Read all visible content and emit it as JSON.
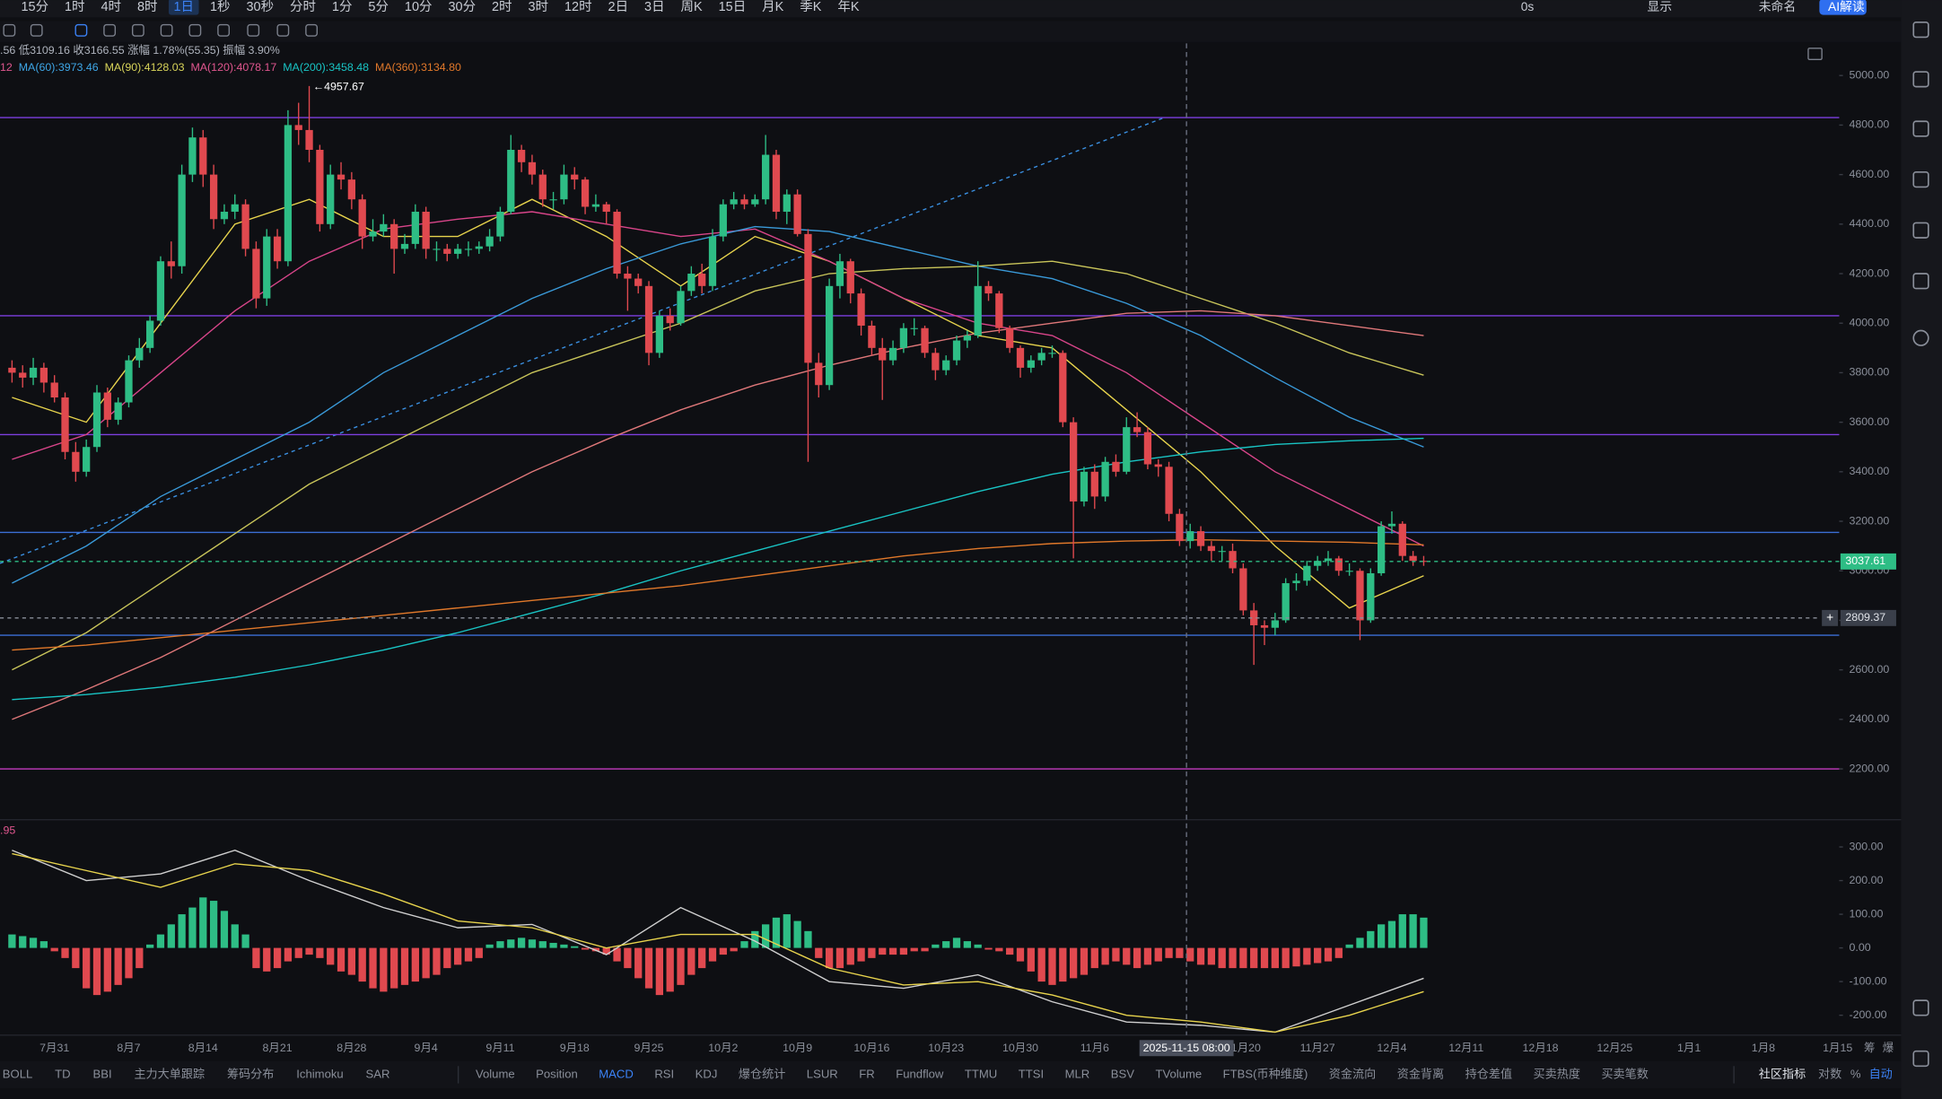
{
  "toolbar": {
    "intervals": [
      "15分",
      "1时",
      "4时",
      "8时",
      "1日",
      "1秒",
      "30秒",
      "分时",
      "1分",
      "5分",
      "10分",
      "30分",
      "2时",
      "3时",
      "12时",
      "2日",
      "3日",
      "周K",
      "15日",
      "月K",
      "季K",
      "年K"
    ],
    "selected": "1日",
    "right": [
      "0s",
      "显示",
      "未命名",
      "AI解读"
    ]
  },
  "info_line": ".56 低3109.16 收3166.55 涨幅 1.78%(55.35) 振幅 3.90%",
  "ma_legend": [
    {
      "label": "12",
      "color": "#e0568f"
    },
    {
      "label": "MA(60):3973.46",
      "color": "#3ea6e6"
    },
    {
      "label": "MA(90):4128.03",
      "color": "#d8d45a"
    },
    {
      "label": "MA(120):4078.17",
      "color": "#e0568f"
    },
    {
      "label": "MA(200):3458.48",
      "color": "#19c4c4"
    },
    {
      "label": "MA(360):3134.80",
      "color": "#e0782a"
    }
  ],
  "chart_data": {
    "type": "candlestick",
    "up_color": "#2ebd85",
    "down_color": "#e0494f",
    "ylim": [
      1995,
      5130
    ],
    "yticks": [
      {
        "value": 5000,
        "label": "5000.00"
      },
      {
        "value": 4800,
        "label": "4800.00"
      },
      {
        "value": 4600,
        "label": "4600.00"
      },
      {
        "value": 4400,
        "label": "4400.00"
      },
      {
        "value": 4200,
        "label": "4200.00"
      },
      {
        "value": 4000,
        "label": "4000.00"
      },
      {
        "value": 3800,
        "label": "3800.00"
      },
      {
        "value": 3600,
        "label": "3600.00"
      },
      {
        "value": 3400,
        "label": "3400.00"
      },
      {
        "value": 3200,
        "label": "3200.00"
      },
      {
        "value": 3000,
        "label": "3000.00"
      },
      {
        "value": 2800,
        "label": "2800.00"
      },
      {
        "value": 2600,
        "label": "2600.00"
      },
      {
        "value": 2400,
        "label": "2400.00"
      },
      {
        "value": 2200,
        "label": "2200.00"
      }
    ],
    "xticks": [
      "7月31",
      "8月7",
      "8月14",
      "8月21",
      "8月28",
      "9月4",
      "9月11",
      "9月18",
      "9月25",
      "10月2",
      "10月9",
      "10月16",
      "10月23",
      "10月30",
      "11月6",
      null,
      "11月20",
      "11月27",
      "12月4",
      "12月11",
      "12月18",
      "12月25",
      "1月1",
      "1月8",
      "1月15"
    ],
    "crosshair_label": "2025-11-15 08:00",
    "last_price": 3037.61,
    "marker_price": 2809.37,
    "candles": [
      [
        3820,
        3850,
        3760,
        3800
      ],
      [
        3800,
        3830,
        3740,
        3780
      ],
      [
        3780,
        3860,
        3750,
        3820
      ],
      [
        3820,
        3840,
        3720,
        3760
      ],
      [
        3760,
        3790,
        3680,
        3700
      ],
      [
        3700,
        3720,
        3450,
        3480
      ],
      [
        3480,
        3520,
        3360,
        3400
      ],
      [
        3400,
        3530,
        3380,
        3500
      ],
      [
        3500,
        3750,
        3480,
        3720
      ],
      [
        3720,
        3740,
        3580,
        3610
      ],
      [
        3610,
        3700,
        3590,
        3680
      ],
      [
        3680,
        3870,
        3660,
        3850
      ],
      [
        3850,
        3940,
        3820,
        3900
      ],
      [
        3900,
        4030,
        3880,
        4010
      ],
      [
        4010,
        4270,
        3990,
        4250
      ],
      [
        4250,
        4330,
        4180,
        4230
      ],
      [
        4230,
        4640,
        4200,
        4600
      ],
      [
        4600,
        4790,
        4570,
        4750
      ],
      [
        4750,
        4780,
        4550,
        4600
      ],
      [
        4600,
        4640,
        4380,
        4420
      ],
      [
        4420,
        4480,
        4400,
        4450
      ],
      [
        4450,
        4520,
        4420,
        4480
      ],
      [
        4480,
        4500,
        4270,
        4300
      ],
      [
        4300,
        4330,
        4060,
        4100
      ],
      [
        4100,
        4380,
        4070,
        4350
      ],
      [
        4350,
        4380,
        4220,
        4250
      ],
      [
        4250,
        4860,
        4230,
        4800
      ],
      [
        4800,
        4890,
        4720,
        4780
      ],
      [
        4780,
        4957.67,
        4650,
        4700
      ],
      [
        4700,
        4720,
        4370,
        4400
      ],
      [
        4400,
        4640,
        4380,
        4600
      ],
      [
        4600,
        4650,
        4540,
        4580
      ],
      [
        4580,
        4610,
        4460,
        4500
      ],
      [
        4500,
        4520,
        4300,
        4350
      ],
      [
        4350,
        4420,
        4330,
        4370
      ],
      [
        4370,
        4440,
        4350,
        4400
      ],
      [
        4400,
        4420,
        4200,
        4300
      ],
      [
        4300,
        4360,
        4280,
        4320
      ],
      [
        4320,
        4480,
        4300,
        4450
      ],
      [
        4450,
        4470,
        4260,
        4300
      ],
      [
        4300,
        4330,
        4250,
        4300
      ],
      [
        4300,
        4320,
        4250,
        4280
      ],
      [
        4280,
        4320,
        4260,
        4300
      ],
      [
        4300,
        4330,
        4270,
        4300
      ],
      [
        4300,
        4330,
        4280,
        4310
      ],
      [
        4310,
        4380,
        4290,
        4350
      ],
      [
        4350,
        4470,
        4330,
        4450
      ],
      [
        4450,
        4760,
        4440,
        4700
      ],
      [
        4700,
        4720,
        4610,
        4650
      ],
      [
        4650,
        4680,
        4560,
        4600
      ],
      [
        4600,
        4620,
        4470,
        4500
      ],
      [
        4500,
        4530,
        4460,
        4500
      ],
      [
        4500,
        4640,
        4480,
        4600
      ],
      [
        4600,
        4630,
        4540,
        4580
      ],
      [
        4580,
        4590,
        4440,
        4470
      ],
      [
        4470,
        4520,
        4450,
        4480
      ],
      [
        4480,
        4490,
        4400,
        4450
      ],
      [
        4450,
        4460,
        4180,
        4200
      ],
      [
        4200,
        4230,
        4050,
        4180
      ],
      [
        4180,
        4200,
        4120,
        4150
      ],
      [
        4150,
        4170,
        3830,
        3880
      ],
      [
        3880,
        4050,
        3860,
        4030
      ],
      [
        4030,
        4060,
        3970,
        4000
      ],
      [
        4000,
        4150,
        3990,
        4130
      ],
      [
        4130,
        4230,
        4110,
        4200
      ],
      [
        4200,
        4240,
        4120,
        4150
      ],
      [
        4150,
        4380,
        4130,
        4350
      ],
      [
        4350,
        4500,
        4330,
        4480
      ],
      [
        4480,
        4530,
        4460,
        4500
      ],
      [
        4500,
        4520,
        4460,
        4480
      ],
      [
        4480,
        4520,
        4470,
        4500
      ],
      [
        4500,
        4760,
        4480,
        4680
      ],
      [
        4680,
        4700,
        4420,
        4450
      ],
      [
        4450,
        4540,
        4400,
        4520
      ],
      [
        4520,
        4540,
        4350,
        4360
      ],
      [
        4360,
        4380,
        3440,
        3840
      ],
      [
        3840,
        3880,
        3700,
        3750
      ],
      [
        3750,
        4180,
        3730,
        4150
      ],
      [
        4150,
        4280,
        4100,
        4250
      ],
      [
        4250,
        4260,
        4080,
        4120
      ],
      [
        4120,
        4140,
        3950,
        3990
      ],
      [
        3990,
        4010,
        3870,
        3900
      ],
      [
        3900,
        3940,
        3690,
        3850
      ],
      [
        3850,
        3930,
        3830,
        3900
      ],
      [
        3900,
        4000,
        3880,
        3980
      ],
      [
        3980,
        4020,
        3950,
        3980
      ],
      [
        3980,
        3990,
        3860,
        3880
      ],
      [
        3880,
        3900,
        3770,
        3810
      ],
      [
        3810,
        3870,
        3790,
        3850
      ],
      [
        3850,
        3950,
        3830,
        3930
      ],
      [
        3930,
        3970,
        3900,
        3950
      ],
      [
        3950,
        4250,
        3940,
        4150
      ],
      [
        4150,
        4170,
        4090,
        4120
      ],
      [
        4120,
        4130,
        3960,
        3980
      ],
      [
        3980,
        3990,
        3880,
        3900
      ],
      [
        3900,
        3910,
        3780,
        3820
      ],
      [
        3820,
        3870,
        3800,
        3850
      ],
      [
        3850,
        3900,
        3830,
        3880
      ],
      [
        3880,
        3910,
        3860,
        3880
      ],
      [
        3880,
        3890,
        3580,
        3600
      ],
      [
        3600,
        3620,
        3050,
        3280
      ],
      [
        3280,
        3420,
        3260,
        3400
      ],
      [
        3400,
        3430,
        3250,
        3300
      ],
      [
        3300,
        3460,
        3280,
        3440
      ],
      [
        3440,
        3470,
        3380,
        3400
      ],
      [
        3400,
        3620,
        3390,
        3580
      ],
      [
        3580,
        3640,
        3540,
        3560
      ],
      [
        3560,
        3580,
        3410,
        3430
      ],
      [
        3430,
        3450,
        3380,
        3420
      ],
      [
        3420,
        3440,
        3200,
        3230
      ],
      [
        3230,
        3250,
        3100,
        3120
      ],
      [
        3120,
        3190,
        3090,
        3160
      ],
      [
        3160,
        3180,
        3080,
        3100
      ],
      [
        3100,
        3120,
        3040,
        3080
      ],
      [
        3080,
        3100,
        3040,
        3080
      ],
      [
        3080,
        3110,
        2990,
        3010
      ],
      [
        3010,
        3030,
        2820,
        2840
      ],
      [
        2840,
        2870,
        2620,
        2780
      ],
      [
        2780,
        2800,
        2700,
        2770
      ],
      [
        2770,
        2830,
        2740,
        2800
      ],
      [
        2800,
        2970,
        2790,
        2950
      ],
      [
        2950,
        2990,
        2920,
        2960
      ],
      [
        2960,
        3040,
        2940,
        3020
      ],
      [
        3020,
        3060,
        3000,
        3040
      ],
      [
        3040,
        3080,
        3020,
        3050
      ],
      [
        3050,
        3060,
        2980,
        3000
      ],
      [
        3000,
        3030,
        2980,
        3000
      ],
      [
        3000,
        3010,
        2720,
        2800
      ],
      [
        2800,
        3010,
        2790,
        2990
      ],
      [
        2990,
        3200,
        2980,
        3180
      ],
      [
        3180,
        3240,
        3150,
        3190
      ],
      [
        3190,
        3200,
        3040,
        3060
      ],
      [
        3060,
        3080,
        3020,
        3040
      ],
      [
        3040,
        3060,
        3020,
        3037.61
      ]
    ],
    "ma_lines": [
      {
        "color": "#e8d44d",
        "values": [
          3700,
          3600,
          4000,
          4400,
          4500,
          4350,
          4350,
          4500,
          4350,
          4150,
          4350,
          4250,
          4100,
          3950,
          3900,
          3650,
          3400,
          3100,
          2850,
          2980
        ]
      },
      {
        "color": "#d9458a",
        "values": [
          3450,
          3550,
          3800,
          4050,
          4250,
          4380,
          4420,
          4450,
          4400,
          4350,
          4380,
          4250,
          4100,
          4000,
          3950,
          3800,
          3600,
          3400,
          3250,
          3100
        ]
      },
      {
        "color": "#3a9ad9",
        "values": [
          2950,
          3100,
          3300,
          3450,
          3600,
          3800,
          3950,
          4100,
          4220,
          4320,
          4390,
          4370,
          4300,
          4230,
          4180,
          4080,
          3950,
          3780,
          3620,
          3500
        ]
      },
      {
        "color": "#c9c55a",
        "values": [
          2600,
          2750,
          2950,
          3150,
          3350,
          3500,
          3650,
          3800,
          3900,
          4000,
          4130,
          4200,
          4220,
          4230,
          4250,
          4200,
          4100,
          4000,
          3880,
          3790
        ]
      },
      {
        "color": "#e0787a",
        "values": [
          2400,
          2520,
          2650,
          2800,
          2950,
          3100,
          3250,
          3400,
          3530,
          3650,
          3750,
          3830,
          3900,
          3960,
          4000,
          4040,
          4050,
          4030,
          3990,
          3950
        ]
      },
      {
        "color": "#19c4c4",
        "values": [
          2480,
          2500,
          2530,
          2570,
          2620,
          2680,
          2750,
          2830,
          2910,
          3000,
          3080,
          3160,
          3240,
          3320,
          3390,
          3440,
          3480,
          3510,
          3525,
          3535
        ]
      },
      {
        "color": "#e0782a",
        "values": [
          2680,
          2700,
          2730,
          2760,
          2790,
          2820,
          2850,
          2880,
          2910,
          2940,
          2980,
          3020,
          3060,
          3090,
          3110,
          3120,
          3125,
          3120,
          3115,
          3105
        ]
      }
    ],
    "hlines": [
      {
        "value": 4830,
        "color": "#7d3fe0"
      },
      {
        "value": 4030,
        "color": "#7d3fe0"
      },
      {
        "value": 3550,
        "color": "#7d3fe0"
      },
      {
        "value": 3155,
        "color": "#3b6fd6"
      },
      {
        "value": 2740,
        "color": "#3b6fd6"
      },
      {
        "value": 2200,
        "color": "#c33bc0"
      }
    ]
  },
  "macd": {
    "label": ".95",
    "ylim": [
      -259,
      381
    ],
    "yticks": [
      {
        "value": 300,
        "label": "300.00"
      },
      {
        "value": 200,
        "label": "200.00"
      },
      {
        "value": 100,
        "label": "100.00"
      },
      {
        "value": 0,
        "label": "0.00"
      },
      {
        "value": -100,
        "label": "-100.00"
      },
      {
        "value": -200,
        "label": "-200.00"
      }
    ],
    "histogram": [
      40,
      35,
      30,
      20,
      -10,
      -30,
      -60,
      -120,
      -140,
      -130,
      -110,
      -90,
      -60,
      10,
      40,
      70,
      100,
      120,
      150,
      140,
      110,
      70,
      40,
      -60,
      -70,
      -60,
      -40,
      -30,
      -20,
      -30,
      -50,
      -70,
      -80,
      -100,
      -120,
      -130,
      -120,
      -110,
      -100,
      -90,
      -80,
      -60,
      -50,
      -40,
      -30,
      10,
      20,
      25,
      30,
      25,
      20,
      15,
      10,
      5,
      -5,
      -10,
      -20,
      -40,
      -60,
      -90,
      -120,
      -140,
      -130,
      -110,
      -80,
      -60,
      -40,
      -20,
      -10,
      20,
      50,
      70,
      90,
      100,
      80,
      50,
      -30,
      -60,
      -60,
      -50,
      -40,
      -30,
      -20,
      -20,
      -20,
      -10,
      -10,
      10,
      20,
      30,
      20,
      10,
      -5,
      -10,
      -20,
      -40,
      -70,
      -100,
      -110,
      -100,
      -90,
      -80,
      -60,
      -50,
      -40,
      -50,
      -60,
      -50,
      -40,
      -30,
      -30,
      -40,
      -50,
      -50,
      -60,
      -60,
      -60,
      -60,
      -60,
      -60,
      -60,
      -55,
      -50,
      -45,
      -40,
      -30,
      10,
      30,
      50,
      70,
      80,
      100,
      100,
      90
    ],
    "dif": {
      "color": "#d0d0d0",
      "values": [
        290,
        200,
        220,
        290,
        200,
        120,
        60,
        70,
        -20,
        120,
        20,
        -100,
        -120,
        -80,
        -160,
        -220,
        -230,
        -250,
        -170,
        -90
      ]
    },
    "dea": {
      "color": "#e8d44d",
      "values": [
        280,
        230,
        180,
        250,
        230,
        160,
        80,
        60,
        0,
        40,
        40,
        -60,
        -110,
        -100,
        -140,
        -200,
        -220,
        -250,
        -200,
        -130
      ]
    }
  },
  "axis_right_labels": [
    "筹",
    "爆"
  ],
  "indicator_tabs": {
    "main": [
      "BOLL",
      "TD",
      "BBI",
      "主力大单跟踪",
      "筹码分布",
      "Ichimoku",
      "SAR"
    ],
    "sub": [
      "Volume",
      "Position",
      "MACD",
      "RSI",
      "KDJ",
      "爆仓统计",
      "LSUR",
      "FR",
      "Fundflow",
      "TTMU",
      "TTSI",
      "MLR",
      "BSV",
      "TVolume",
      "FTBS(币种维度)",
      "资金流向",
      "资金背离",
      "持仓差值",
      "买卖热度",
      "买卖笔数"
    ],
    "active": "MACD",
    "right": [
      "社区指标",
      "对数",
      "%",
      "自动"
    ]
  }
}
